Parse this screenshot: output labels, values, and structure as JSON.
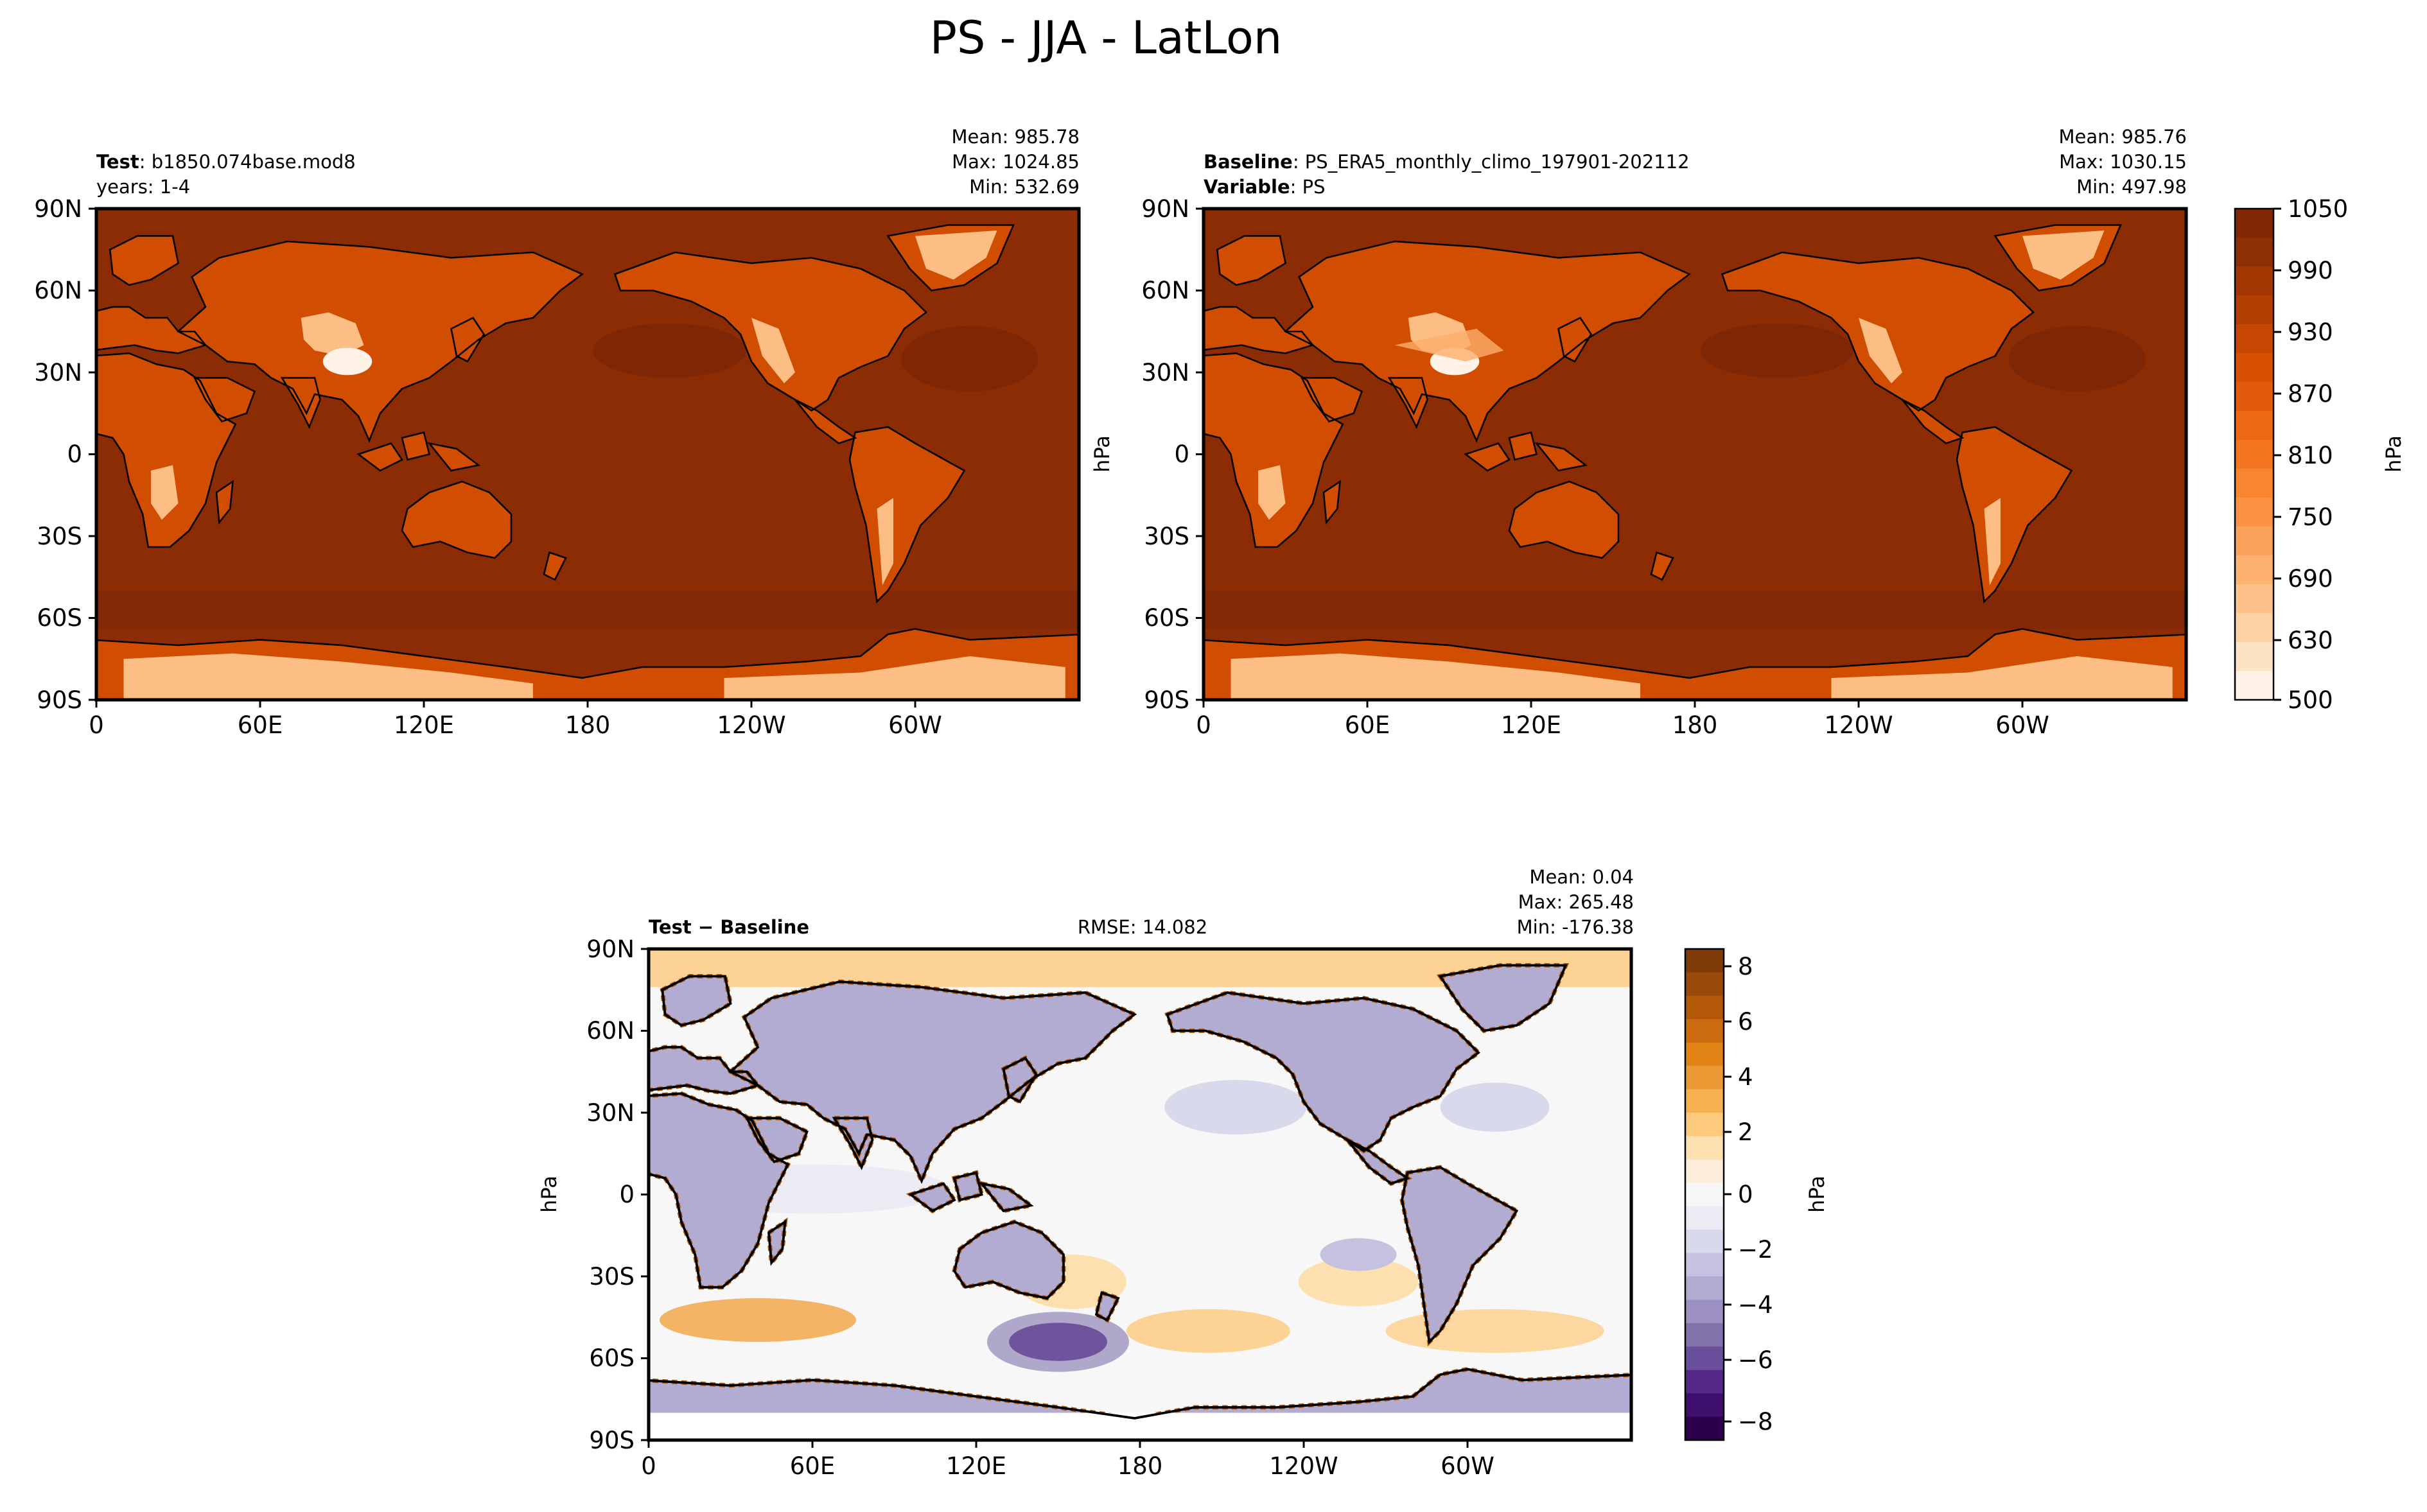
{
  "figure": {
    "title": "PS - JJA - LatLon"
  },
  "colors": {
    "ocean_top": "#8b2c04",
    "ocean_dark": "#7f2704",
    "land_mid": "#e1640e",
    "land_light": "#fdbe85",
    "diff_white": "#f7f7f7",
    "diff_orange": "#f1a340",
    "diff_purple": "#998ec3",
    "diff_dark_purple": "#2d004b",
    "coastline": "#000000"
  },
  "panels": [
    {
      "id": "test",
      "left_label_bold": "Test",
      "left_label_rest": ": b1850.074base.mod8",
      "left_label_line2_bold": "",
      "left_label_line2_rest": "years: 1-4",
      "center_label": "",
      "stats": [
        "Mean: 985.78",
        "Max: 1024.85",
        "Min: 532.69"
      ],
      "ylabel": ""
    },
    {
      "id": "baseline",
      "left_label_bold": "Baseline",
      "left_label_rest": ": PS_ERA5_monthly_climo_197901-202112",
      "left_label_line2_bold": "Variable",
      "left_label_line2_rest": ": PS",
      "center_label": "",
      "stats": [
        "Mean: 985.76",
        "Max: 1030.15",
        "Min: 497.98"
      ],
      "ylabel": "hPa"
    },
    {
      "id": "diff",
      "left_label_bold": "Test − Baseline",
      "left_label_rest": "",
      "left_label_line2_bold": "",
      "left_label_line2_rest": "",
      "center_label": "RMSE: 14.082",
      "stats": [
        "Mean:  0.04",
        "Max: 265.48",
        "Min: -176.38"
      ],
      "ylabel": "hPa"
    }
  ],
  "axes": {
    "lat_ticks": [
      "90N",
      "60N",
      "30N",
      "0",
      "30S",
      "60S",
      "90S"
    ],
    "lon_ticks": [
      "0",
      "60E",
      "120E",
      "180",
      "120W",
      "60W"
    ]
  },
  "colorbars": [
    {
      "id": "ps",
      "label": "hPa",
      "tick_labels": [
        "1050",
        "990",
        "930",
        "870",
        "810",
        "750",
        "690",
        "630",
        "500"
      ],
      "colors": [
        "#7f2704",
        "#8e2e04",
        "#a13603",
        "#b33e03",
        "#c54702",
        "#d85002",
        "#e35b0a",
        "#ec6815",
        "#f4751f",
        "#f9852e",
        "#fd9242",
        "#fda25a",
        "#fdb271",
        "#fdc28a",
        "#fdd1a5",
        "#fde2c6",
        "#fff2e6"
      ]
    },
    {
      "id": "diff",
      "label": "hPa",
      "tick_labels": [
        "8",
        "6",
        "4",
        "2",
        "0",
        "−2",
        "−4",
        "−6",
        "−8"
      ],
      "colors": [
        "#7f3b08",
        "#9a4a0b",
        "#b35806",
        "#cc6a10",
        "#e08214",
        "#ec9a36",
        "#f6b152",
        "#fdc97b",
        "#fde0b0",
        "#fceedb",
        "#f7f7f7",
        "#ecebf3",
        "#d8daeb",
        "#c4c2de",
        "#b2abd2",
        "#9d91c3",
        "#8073ac",
        "#6a4f9c",
        "#542788",
        "#3f0f6e",
        "#2d004b"
      ]
    }
  ],
  "chart_data": [
    {
      "type": "heatmap",
      "panel": "test",
      "variable": "PS",
      "season": "JJA",
      "units": "hPa",
      "mean": 985.78,
      "max": 1024.85,
      "min": 532.69,
      "xlim": [
        0,
        360
      ],
      "ylim": [
        -90,
        90
      ],
      "colorbar_range": [
        500,
        1050
      ]
    },
    {
      "type": "heatmap",
      "panel": "baseline",
      "variable": "PS",
      "season": "JJA",
      "units": "hPa",
      "mean": 985.76,
      "max": 1030.15,
      "min": 497.98,
      "xlim": [
        0,
        360
      ],
      "ylim": [
        -90,
        90
      ],
      "colorbar_range": [
        500,
        1050
      ]
    },
    {
      "type": "heatmap",
      "panel": "diff",
      "variable": "PS",
      "season": "JJA",
      "units": "hPa",
      "mean": 0.04,
      "max": 265.48,
      "min": -176.38,
      "rmse": 14.082,
      "xlim": [
        0,
        360
      ],
      "ylim": [
        -90,
        90
      ],
      "colorbar_range": [
        -8.5,
        8.5
      ]
    }
  ]
}
